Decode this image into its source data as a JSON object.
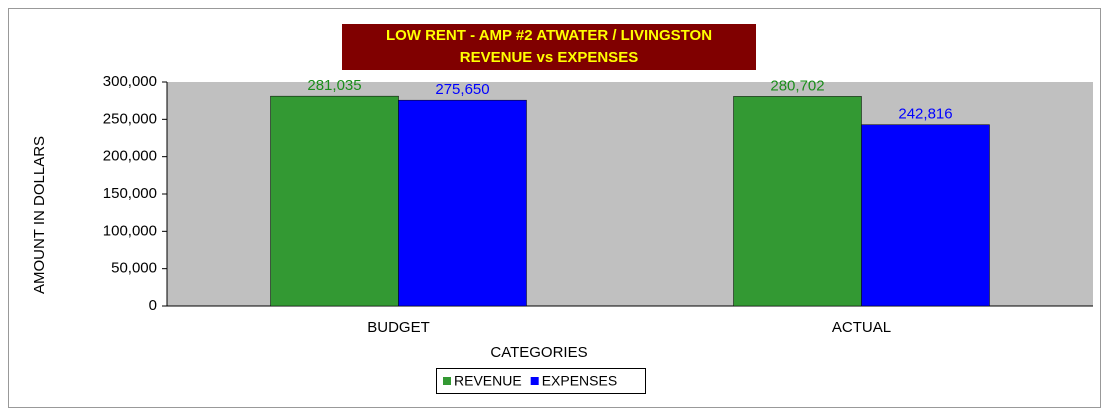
{
  "chart_data": {
    "type": "bar",
    "title": "LOW RENT - AMP #2 ATWATER / LIVINGSTON",
    "subtitle": "REVENUE vs EXPENSES",
    "x_label": "CATEGORIES",
    "y_label": "AMOUNT IN DOLLARS",
    "categories": [
      "BUDGET",
      "ACTUAL"
    ],
    "series": [
      {
        "name": "REVENUE",
        "color": "#339933",
        "label_color": "#1a8c1a",
        "values": [
          281035,
          280702
        ],
        "value_labels": [
          "281,035",
          "280,702"
        ]
      },
      {
        "name": "EXPENSES",
        "color": "#0000ff",
        "label_color": "#0000ff",
        "values": [
          275650,
          242816
        ],
        "value_labels": [
          "275,650",
          "242,816"
        ]
      }
    ],
    "ylim": [
      0,
      300000
    ],
    "yticks": [
      0,
      {
        "value": 50000,
        "label": "50,000"
      },
      {
        "value": 100000,
        "label": "100,000"
      },
      {
        "value": 150000,
        "label": "150,000"
      },
      {
        "value": 200000,
        "label": "200,000"
      },
      {
        "value": 250000,
        "label": "250,000"
      },
      {
        "value": 300000,
        "label": "300,000"
      }
    ],
    "plot_background": "#c0c0c0",
    "legend": "bottom"
  }
}
